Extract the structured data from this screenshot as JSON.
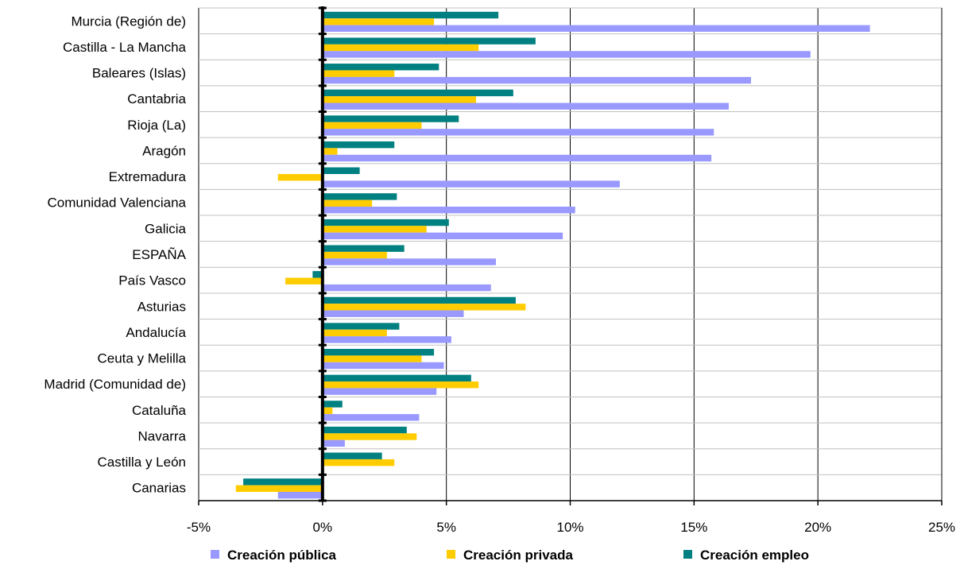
{
  "chart_data": {
    "type": "bar",
    "orientation": "horizontal",
    "title": "",
    "xlabel": "",
    "ylabel": "",
    "xlim": [
      -5,
      25
    ],
    "x_ticks": [
      -5,
      0,
      5,
      10,
      15,
      20,
      25
    ],
    "x_tick_labels": [
      "-5%",
      "0%",
      "5%",
      "10%",
      "15%",
      "20%",
      "25%"
    ],
    "grid": "vertical",
    "legend_position": "bottom",
    "categories": [
      "Murcia (Región de)",
      "Castilla - La Mancha",
      "Baleares (Islas)",
      "Cantabria",
      "Rioja (La)",
      "Aragón",
      "Extremadura",
      "Comunidad Valenciana",
      "Galicia",
      "ESPAÑA",
      "País Vasco",
      "Asturias",
      "Andalucía",
      "Ceuta y Melilla",
      "Madrid (Comunidad de)",
      "Cataluña",
      "Navarra",
      "Castilla y León",
      "Canarias"
    ],
    "series": [
      {
        "name": "Creación pública",
        "color": "#9999ff",
        "values": [
          22.1,
          19.7,
          17.3,
          16.4,
          15.8,
          15.7,
          12.0,
          10.2,
          9.7,
          7.0,
          6.8,
          5.7,
          5.2,
          4.9,
          4.6,
          3.9,
          0.9,
          0.0,
          -1.8
        ]
      },
      {
        "name": "Creación privada",
        "color": "#ffcc00",
        "values": [
          4.5,
          6.3,
          2.9,
          6.2,
          4.0,
          0.6,
          -1.8,
          2.0,
          4.2,
          2.6,
          -1.5,
          8.2,
          2.6,
          4.0,
          6.3,
          0.4,
          3.8,
          2.9,
          -3.5
        ]
      },
      {
        "name": "Creación empleo",
        "color": "#008080",
        "values": [
          7.1,
          8.6,
          4.7,
          7.7,
          5.5,
          2.9,
          1.5,
          3.0,
          5.1,
          3.3,
          -0.4,
          7.8,
          3.1,
          4.5,
          6.0,
          0.8,
          3.4,
          2.4,
          -3.2
        ]
      }
    ]
  }
}
